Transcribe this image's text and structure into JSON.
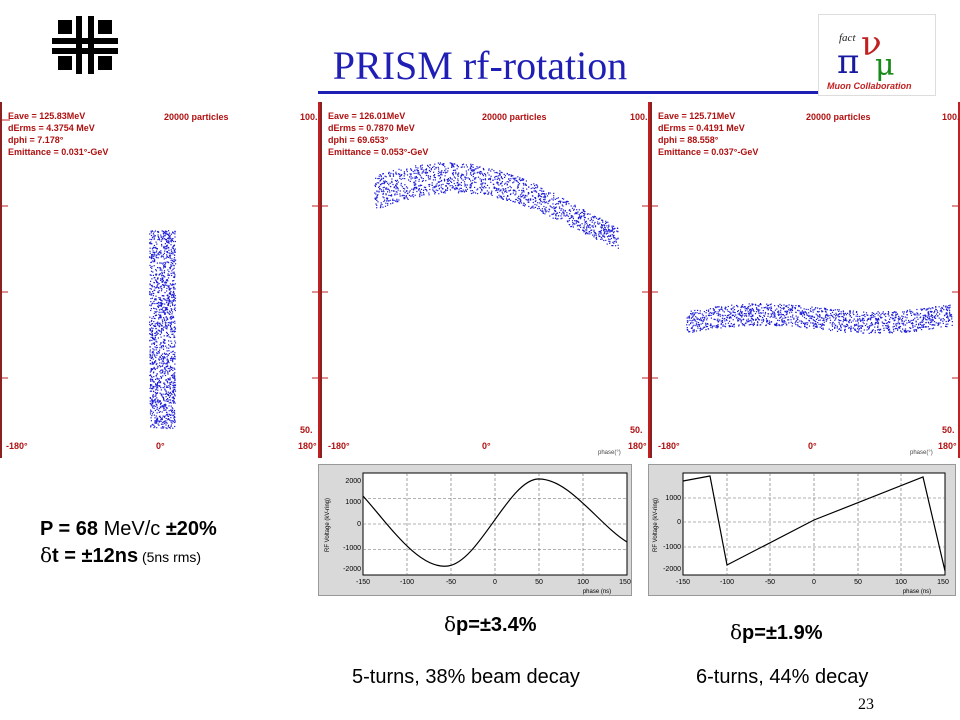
{
  "slide": {
    "title": "PRISM rf-rotation",
    "page_number": "23",
    "logo_text": "Muon Collaboration",
    "logo_nu_text": "fact"
  },
  "panels": [
    {
      "eave": "Eave =  125.83MeV",
      "derms": "dErms = 4.3754 MeV",
      "dphi": "dphi =  7.178°",
      "emittance": "Emittance =  0.031°-GeV",
      "particles": "20000 particles",
      "y_max": "100.",
      "y_min": "50.",
      "x_min": "-180°",
      "x_mid": "0°",
      "x_max": "180°"
    },
    {
      "eave": "Eave =  126.01MeV",
      "derms": "dErms = 0.7870 MeV",
      "dphi": "dphi = 69.653°",
      "emittance": "Emittance =  0.053°-GeV",
      "particles": "20000 particles",
      "y_max": "100.",
      "y_min": "50.",
      "x_min": "-180°",
      "x_mid": "0°",
      "x_max": "180°",
      "x_axis_label": "phase(°)"
    },
    {
      "eave": "Eave =  125.71MeV",
      "derms": "dErms = 0.4191 MeV",
      "dphi": "dphi = 88.558°",
      "emittance": "Emittance =  0.037°-GeV",
      "particles": "20000 particles",
      "y_max": "100.",
      "y_min": "50.",
      "x_min": "-180°",
      "x_mid": "0°",
      "x_max": "180°",
      "x_axis_label": "phase(°)"
    }
  ],
  "rf_plots": [
    {
      "ylabel": "RF Voltage (kV-ring)",
      "xlabel": "phase (ns)",
      "yticks": [
        "2000",
        "1000",
        "0",
        "-1000",
        "-2000"
      ],
      "xticks": [
        "-150",
        "-100",
        "-50",
        "0",
        "50",
        "100",
        "150"
      ]
    },
    {
      "ylabel": "RF Voltage (kV-ring)",
      "xlabel": "phase (ns)",
      "yticks": [
        "1000",
        "0",
        "-1000",
        "-2000"
      ],
      "xticks": [
        "-150",
        "-100",
        "-50",
        "0",
        "50",
        "100",
        "150"
      ]
    }
  ],
  "params": {
    "p_label": "P = 68",
    "p_unit": " MeV/c ",
    "p_spread": "±20%",
    "t_symbol": "δ",
    "t_label": "t = ±12ns",
    "t_rms": " (5ns rms)"
  },
  "results": [
    {
      "symbol": "δ",
      "value": "p=±3.4%",
      "note": "5-turns, 38% beam decay"
    },
    {
      "symbol": "δ",
      "value": "p=±1.9%",
      "note": "6-turns, 44% decay"
    }
  ],
  "colors": {
    "title": "#1f1fb6",
    "frame": "#c02020",
    "particles": "#1a1ad8",
    "info_text": "#b01010"
  }
}
